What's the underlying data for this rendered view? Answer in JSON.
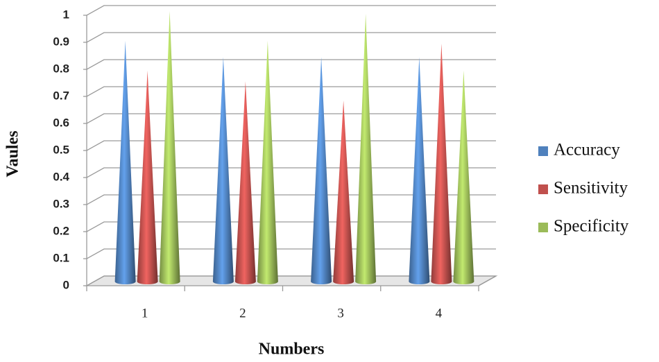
{
  "chart_data": {
    "type": "cone3d",
    "x_label": "Numbers",
    "y_label": "Vaules",
    "categories": [
      "1",
      "2",
      "3",
      "4"
    ],
    "series": [
      {
        "name": "Accuracy",
        "color": "#4f81bd",
        "values": [
          0.89,
          0.83,
          0.83,
          0.83
        ]
      },
      {
        "name": "Sensitivity",
        "color": "#c0504d",
        "values": [
          0.78,
          0.74,
          0.67,
          0.88
        ]
      },
      {
        "name": "Specificity",
        "color": "#9bbb59",
        "values": [
          1.0,
          0.89,
          0.99,
          0.78
        ]
      }
    ],
    "ylim": [
      0,
      1
    ],
    "yticks": [
      0,
      0.1,
      0.2,
      0.3,
      0.4,
      0.5,
      0.6,
      0.7,
      0.8,
      0.9,
      1
    ],
    "grid": true,
    "legend": "right"
  }
}
